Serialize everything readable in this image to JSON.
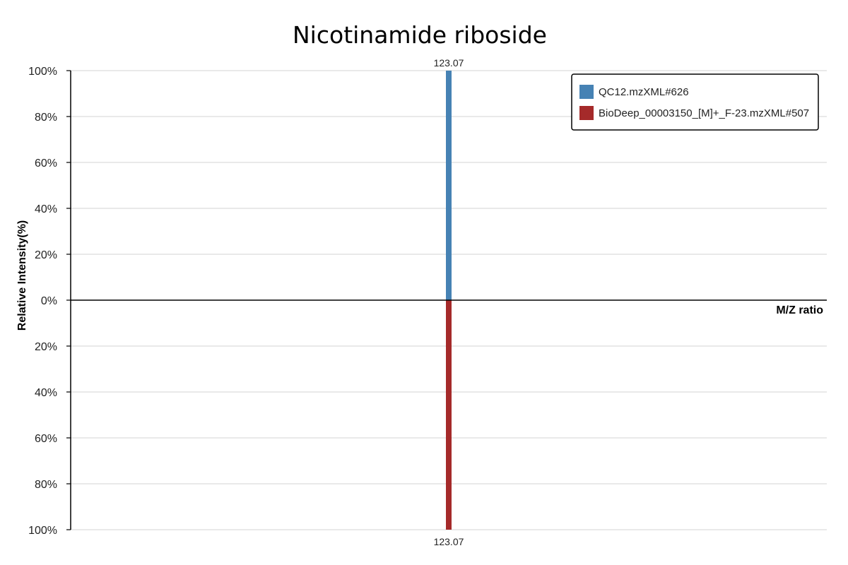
{
  "chart_data": {
    "type": "bar",
    "title": "Nicotinamide riboside",
    "xlabel": "M/Z ratio",
    "ylabel": "Relative Intensity(%)",
    "layout": "mirror",
    "ylim_top": [
      0,
      100
    ],
    "ylim_bottom": [
      0,
      100
    ],
    "y_ticks_top": [
      "0%",
      "20%",
      "40%",
      "60%",
      "80%",
      "100%"
    ],
    "y_ticks_bottom": [
      "20%",
      "40%",
      "60%",
      "80%",
      "100%"
    ],
    "grid": true,
    "legend_position": "top-right",
    "series": [
      {
        "name": "QC12.mzXML#626",
        "direction": "up",
        "color": "#4682b4",
        "peaks": [
          {
            "mz": 123.07,
            "intensity": 100,
            "label": "123.07"
          }
        ]
      },
      {
        "name": "BioDeep_00003150_[M]+_F-23.mzXML#507",
        "direction": "down",
        "color": "#a52a2a",
        "peaks": [
          {
            "mz": 123.07,
            "intensity": 100,
            "label": "123.07"
          }
        ]
      }
    ]
  }
}
